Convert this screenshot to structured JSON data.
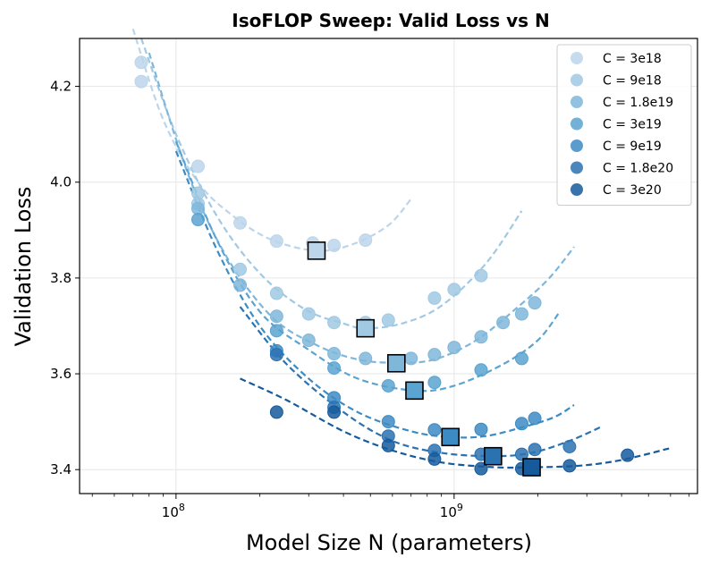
{
  "chart_data": {
    "type": "scatter",
    "title": "IsoFLOP Sweep: Valid Loss vs N",
    "xlabel": "Model Size N (parameters)",
    "ylabel": "Validation Loss",
    "xscale": "log",
    "xlim": [
      45000000,
      7500000000
    ],
    "ylim": [
      3.35,
      4.3
    ],
    "grid": true,
    "legend_position": "top-right",
    "xtick_labels": [
      {
        "value": 100000000,
        "base": "10",
        "exp": "8"
      },
      {
        "value": 1000000000,
        "base": "10",
        "exp": "9"
      }
    ],
    "yticks": [
      3.4,
      3.6,
      3.8,
      4.0,
      4.2
    ],
    "ytick_labels": [
      "3.4",
      "3.6",
      "3.8",
      "4.0",
      "4.2"
    ],
    "series": [
      {
        "name": "C = 3e18",
        "color": "#bcd5ea",
        "points": [
          [
            75000000,
            4.25
          ],
          [
            75000000,
            4.21
          ],
          [
            120000000,
            4.033
          ],
          [
            170000000,
            3.915
          ],
          [
            230000000,
            3.877
          ],
          [
            310000000,
            3.873
          ],
          [
            370000000,
            3.868
          ],
          [
            480000000,
            3.879
          ]
        ],
        "fit": [
          [
            70000000,
            4.32
          ],
          [
            90000000,
            4.13
          ],
          [
            120000000,
            4.0
          ],
          [
            160000000,
            3.93
          ],
          [
            220000000,
            3.88
          ],
          [
            320000000,
            3.857
          ],
          [
            430000000,
            3.87
          ],
          [
            580000000,
            3.91
          ],
          [
            700000000,
            3.965
          ]
        ],
        "optimum": [
          320000000,
          3.857
        ]
      },
      {
        "name": "C = 9e18",
        "color": "#a1c9e3",
        "points": [
          [
            120000000,
            3.977
          ],
          [
            120000000,
            3.955
          ],
          [
            170000000,
            3.818
          ],
          [
            230000000,
            3.768
          ],
          [
            300000000,
            3.725
          ],
          [
            370000000,
            3.707
          ],
          [
            480000000,
            3.707
          ],
          [
            580000000,
            3.712
          ],
          [
            850000000,
            3.758
          ],
          [
            1000000000,
            3.776
          ],
          [
            1250000000,
            3.805
          ]
        ],
        "fit": [
          [
            75000000,
            4.3
          ],
          [
            100000000,
            4.1
          ],
          [
            140000000,
            3.93
          ],
          [
            200000000,
            3.81
          ],
          [
            290000000,
            3.735
          ],
          [
            400000000,
            3.705
          ],
          [
            480000000,
            3.695
          ],
          [
            650000000,
            3.705
          ],
          [
            900000000,
            3.742
          ],
          [
            1300000000,
            3.83
          ],
          [
            1750000000,
            3.94
          ]
        ],
        "optimum": [
          480000000,
          3.695
        ]
      },
      {
        "name": "C = 1.8e19",
        "color": "#7fb7da",
        "points": [
          [
            120000000,
            3.945
          ],
          [
            170000000,
            3.785
          ],
          [
            230000000,
            3.72
          ],
          [
            300000000,
            3.67
          ],
          [
            370000000,
            3.642
          ],
          [
            480000000,
            3.632
          ],
          [
            700000000,
            3.632
          ],
          [
            850000000,
            3.64
          ],
          [
            1000000000,
            3.655
          ],
          [
            1250000000,
            3.677
          ],
          [
            1500000000,
            3.707
          ],
          [
            1750000000,
            3.725
          ],
          [
            1950000000,
            3.748
          ]
        ],
        "fit": [
          [
            80000000,
            4.27
          ],
          [
            110000000,
            4.02
          ],
          [
            150000000,
            3.85
          ],
          [
            220000000,
            3.72
          ],
          [
            320000000,
            3.66
          ],
          [
            450000000,
            3.63
          ],
          [
            620000000,
            3.623
          ],
          [
            850000000,
            3.63
          ],
          [
            1200000000,
            3.67
          ],
          [
            1700000000,
            3.74
          ],
          [
            2200000000,
            3.8
          ],
          [
            2700000000,
            3.865
          ]
        ],
        "optimum": [
          620000000,
          3.622
        ]
      },
      {
        "name": "C = 3e19",
        "color": "#5ba3d0",
        "points": [
          [
            120000000,
            3.922
          ],
          [
            230000000,
            3.69
          ],
          [
            370000000,
            3.612
          ],
          [
            580000000,
            3.575
          ],
          [
            850000000,
            3.582
          ],
          [
            1250000000,
            3.608
          ],
          [
            1750000000,
            3.632
          ]
        ],
        "fit": [
          [
            100000000,
            4.085
          ],
          [
            140000000,
            3.88
          ],
          [
            200000000,
            3.73
          ],
          [
            300000000,
            3.65
          ],
          [
            450000000,
            3.59
          ],
          [
            720000000,
            3.565
          ],
          [
            1000000000,
            3.575
          ],
          [
            1500000000,
            3.62
          ],
          [
            2000000000,
            3.67
          ],
          [
            2400000000,
            3.73
          ]
        ],
        "optimum": [
          720000000,
          3.565
        ]
      },
      {
        "name": "C = 9e19",
        "color": "#3c8bc4",
        "points": [
          [
            230000000,
            3.648
          ],
          [
            370000000,
            3.55
          ],
          [
            580000000,
            3.5
          ],
          [
            850000000,
            3.483
          ],
          [
            1250000000,
            3.484
          ],
          [
            1750000000,
            3.496
          ],
          [
            1950000000,
            3.507
          ]
        ],
        "fit": [
          [
            100000000,
            4.065
          ],
          [
            140000000,
            3.86
          ],
          [
            200000000,
            3.7
          ],
          [
            300000000,
            3.59
          ],
          [
            450000000,
            3.52
          ],
          [
            700000000,
            3.48
          ],
          [
            970000000,
            3.468
          ],
          [
            1300000000,
            3.47
          ],
          [
            1800000000,
            3.49
          ],
          [
            2300000000,
            3.51
          ],
          [
            2700000000,
            3.535
          ]
        ],
        "optimum": [
          970000000,
          3.468
        ]
      },
      {
        "name": "C = 1.8e20",
        "color": "#2b72b1",
        "points": [
          [
            230000000,
            3.64
          ],
          [
            370000000,
            3.53
          ],
          [
            580000000,
            3.47
          ],
          [
            850000000,
            3.44
          ],
          [
            1250000000,
            3.432
          ],
          [
            1750000000,
            3.432
          ],
          [
            1950000000,
            3.442
          ],
          [
            2600000000,
            3.448
          ]
        ],
        "fit": [
          [
            170000000,
            3.74
          ],
          [
            250000000,
            3.62
          ],
          [
            400000000,
            3.52
          ],
          [
            600000000,
            3.46
          ],
          [
            900000000,
            3.435
          ],
          [
            1380000000,
            3.428
          ],
          [
            1900000000,
            3.435
          ],
          [
            2600000000,
            3.46
          ],
          [
            3400000000,
            3.49
          ]
        ],
        "optimum": [
          1380000000,
          3.428
        ]
      },
      {
        "name": "C = 3e20",
        "color": "#165a9c",
        "points": [
          [
            230000000,
            3.52
          ],
          [
            370000000,
            3.52
          ],
          [
            580000000,
            3.45
          ],
          [
            850000000,
            3.422
          ],
          [
            1250000000,
            3.402
          ],
          [
            1750000000,
            3.402
          ],
          [
            2600000000,
            3.408
          ],
          [
            4200000000,
            3.43
          ]
        ],
        "fit": [
          [
            170000000,
            3.59
          ],
          [
            250000000,
            3.545
          ],
          [
            400000000,
            3.48
          ],
          [
            600000000,
            3.44
          ],
          [
            900000000,
            3.415
          ],
          [
            1400000000,
            3.405
          ],
          [
            1900000000,
            3.405
          ],
          [
            2800000000,
            3.408
          ],
          [
            4000000000,
            3.42
          ],
          [
            6000000000,
            3.445
          ]
        ],
        "optimum": [
          1900000000,
          3.405
        ]
      }
    ]
  }
}
